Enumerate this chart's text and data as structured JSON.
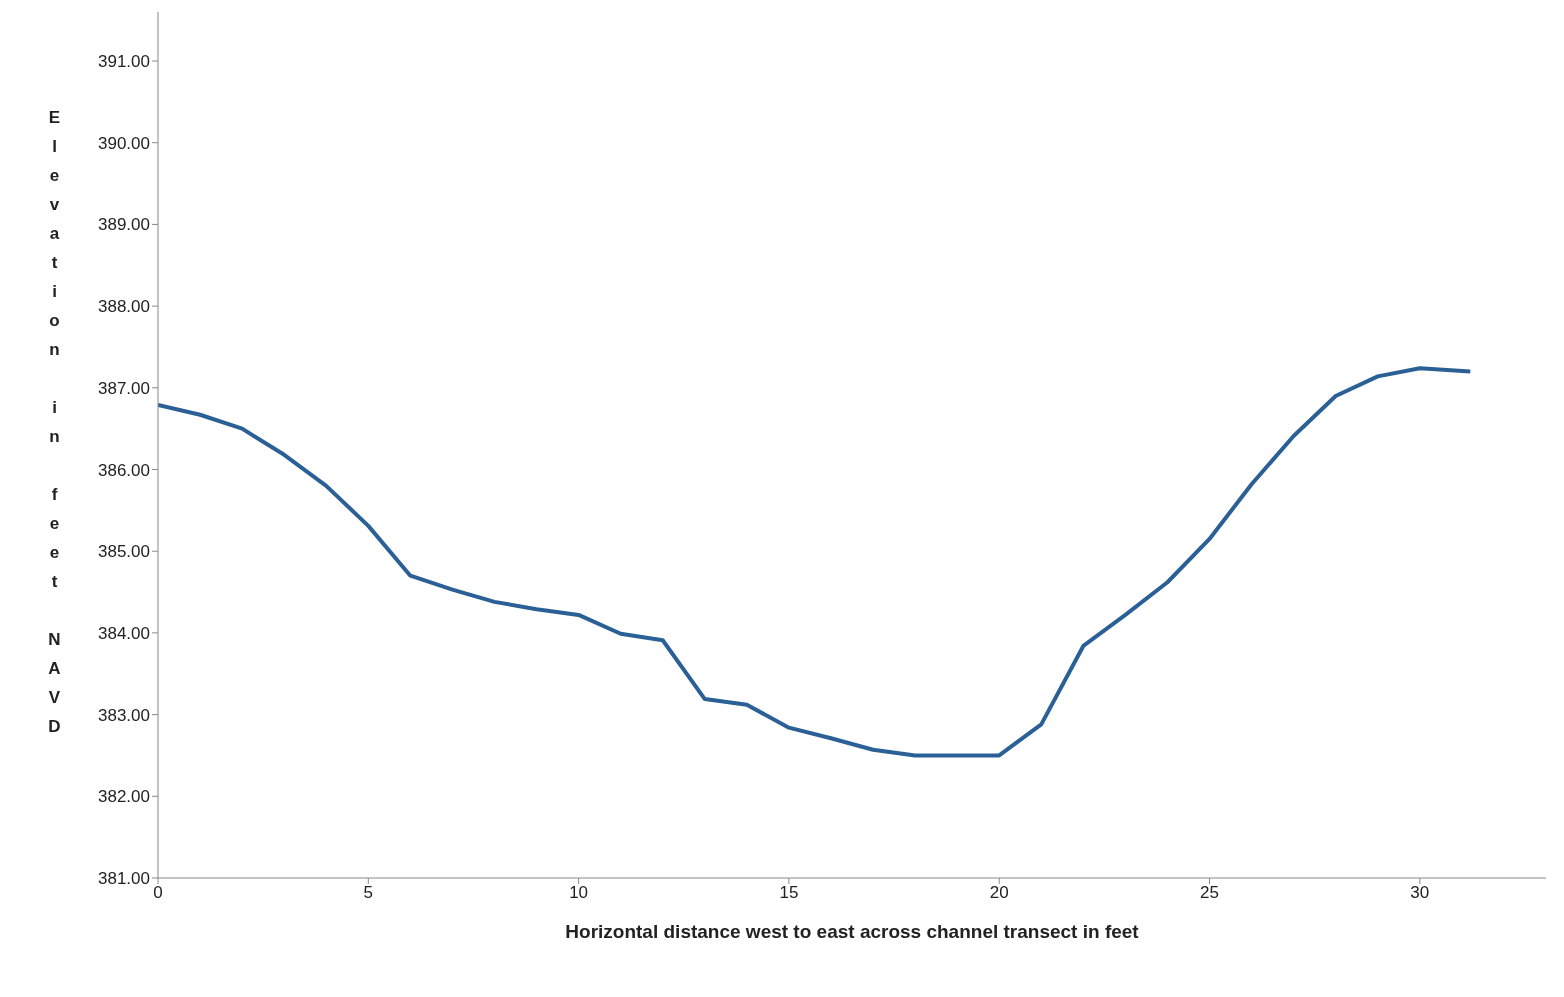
{
  "chart_data": {
    "type": "line",
    "xlabel": "Horizontal distance west to east across channel transect in feet",
    "ylabel": "Elevation in feet NAVD",
    "x": [
      0,
      1,
      2,
      3,
      4,
      5,
      6,
      7,
      8,
      9,
      10,
      11,
      12,
      13,
      14,
      15,
      16,
      17,
      18,
      19,
      20,
      21,
      22,
      23,
      24,
      25,
      26,
      27,
      28,
      29,
      30,
      31.2
    ],
    "series": [
      {
        "color": "#2a6096",
        "values": [
          386.79,
          386.67,
          386.5,
          386.18,
          385.8,
          385.31,
          384.7,
          384.53,
          384.38,
          384.29,
          384.22,
          383.99,
          383.91,
          383.19,
          383.12,
          382.84,
          382.71,
          382.57,
          382.5,
          382.5,
          382.5,
          382.88,
          383.84,
          384.22,
          384.62,
          385.15,
          385.82,
          386.41,
          386.9,
          387.14,
          387.24,
          387.2
        ]
      }
    ],
    "xlim": [
      0,
      33
    ],
    "xticks": [
      0,
      5,
      10,
      15,
      20,
      25,
      30
    ],
    "ylim": [
      381,
      391.6
    ],
    "yticks": [
      {
        "value": 381,
        "label": "381.00"
      },
      {
        "value": 382,
        "label": "382.00"
      },
      {
        "value": 383,
        "label": "383.00"
      },
      {
        "value": 384,
        "label": "384.00"
      },
      {
        "value": 385,
        "label": "385.00"
      },
      {
        "value": 386,
        "label": "386.00"
      },
      {
        "value": 387,
        "label": "387.00"
      },
      {
        "value": 388,
        "label": "388.00"
      },
      {
        "value": 389,
        "label": "389.00"
      },
      {
        "value": 390,
        "label": "390.00"
      },
      {
        "value": 391,
        "label": "391.00"
      }
    ],
    "grid": false,
    "marker": "none",
    "line_style": "solid"
  }
}
